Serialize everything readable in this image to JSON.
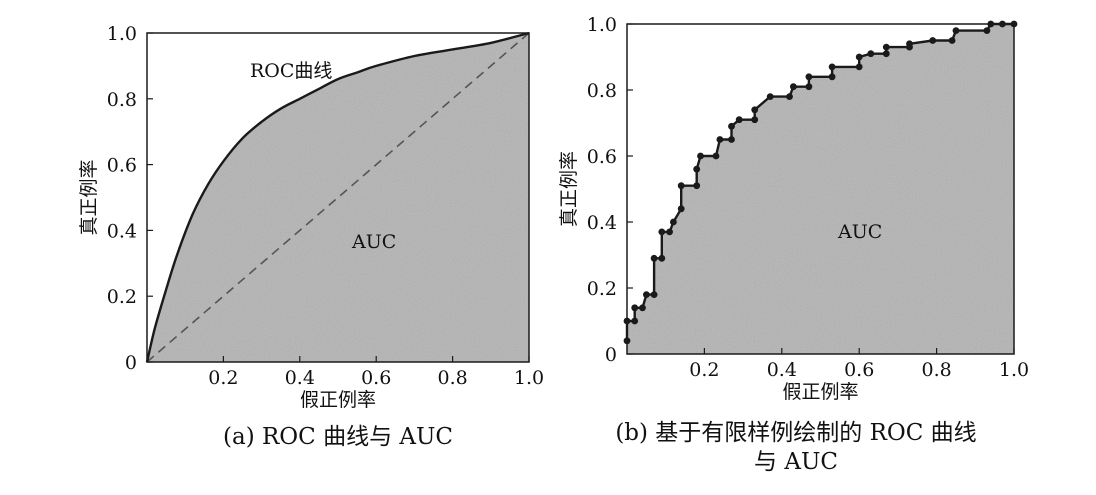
{
  "colors": {
    "fill": "#ababab",
    "curve": "#1a1a1a",
    "diagonal": "#555555",
    "text": "#111111"
  },
  "chart_data": [
    {
      "id": "a",
      "type": "area",
      "caption": "(a) ROC 曲线与 AUC",
      "xlabel": "假正例率",
      "ylabel": "真正例率",
      "xlim": [
        0,
        1
      ],
      "ylim": [
        0,
        1
      ],
      "x_ticks": [
        "0.2",
        "0.4",
        "0.6",
        "0.8",
        "1.0"
      ],
      "y_ticks": [
        "0",
        "0.2",
        "0.4",
        "0.6",
        "0.8",
        "1.0"
      ],
      "grid": false,
      "annotations": {
        "curve_label": "ROC曲线",
        "area_label": "AUC"
      },
      "diagonal": true,
      "series": [
        {
          "name": "ROC曲线",
          "x": [
            0,
            0.02,
            0.05,
            0.08,
            0.12,
            0.16,
            0.2,
            0.25,
            0.3,
            0.35,
            0.4,
            0.45,
            0.5,
            0.55,
            0.6,
            0.7,
            0.8,
            0.9,
            1.0
          ],
          "y": [
            0,
            0.1,
            0.22,
            0.33,
            0.45,
            0.54,
            0.61,
            0.68,
            0.73,
            0.77,
            0.8,
            0.83,
            0.86,
            0.88,
            0.9,
            0.93,
            0.95,
            0.97,
            1.0
          ]
        }
      ]
    },
    {
      "id": "b",
      "type": "area",
      "caption_lines": [
        "(b) 基于有限样例绘制的 ROC 曲线",
        "与 AUC"
      ],
      "xlabel": "假正例率",
      "ylabel": "真正例率",
      "xlim": [
        0,
        1
      ],
      "ylim": [
        0,
        1
      ],
      "x_ticks": [
        "0.2",
        "0.4",
        "0.6",
        "0.8",
        "1.0"
      ],
      "y_ticks": [
        "0",
        "0.2",
        "0.4",
        "0.6",
        "0.8",
        "1.0"
      ],
      "grid": false,
      "annotations": {
        "area_label": "AUC"
      },
      "series": [
        {
          "name": "ROC",
          "step_points": [
            [
              0.0,
              0.04
            ],
            [
              0.0,
              0.1
            ],
            [
              0.02,
              0.1
            ],
            [
              0.02,
              0.14
            ],
            [
              0.04,
              0.14
            ],
            [
              0.05,
              0.18
            ],
            [
              0.07,
              0.18
            ],
            [
              0.07,
              0.29
            ],
            [
              0.09,
              0.29
            ],
            [
              0.09,
              0.37
            ],
            [
              0.11,
              0.37
            ],
            [
              0.12,
              0.4
            ],
            [
              0.14,
              0.44
            ],
            [
              0.14,
              0.51
            ],
            [
              0.18,
              0.51
            ],
            [
              0.18,
              0.56
            ],
            [
              0.19,
              0.6
            ],
            [
              0.23,
              0.6
            ],
            [
              0.24,
              0.65
            ],
            [
              0.27,
              0.65
            ],
            [
              0.27,
              0.69
            ],
            [
              0.29,
              0.71
            ],
            [
              0.33,
              0.71
            ],
            [
              0.33,
              0.74
            ],
            [
              0.37,
              0.78
            ],
            [
              0.42,
              0.78
            ],
            [
              0.43,
              0.81
            ],
            [
              0.47,
              0.81
            ],
            [
              0.47,
              0.84
            ],
            [
              0.53,
              0.84
            ],
            [
              0.53,
              0.87
            ],
            [
              0.6,
              0.87
            ],
            [
              0.6,
              0.9
            ],
            [
              0.63,
              0.91
            ],
            [
              0.67,
              0.91
            ],
            [
              0.67,
              0.93
            ],
            [
              0.73,
              0.93
            ],
            [
              0.73,
              0.94
            ],
            [
              0.79,
              0.95
            ],
            [
              0.84,
              0.95
            ],
            [
              0.85,
              0.98
            ],
            [
              0.93,
              0.98
            ],
            [
              0.94,
              1.0
            ],
            [
              0.97,
              1.0
            ],
            [
              1.0,
              1.0
            ]
          ]
        }
      ]
    }
  ]
}
